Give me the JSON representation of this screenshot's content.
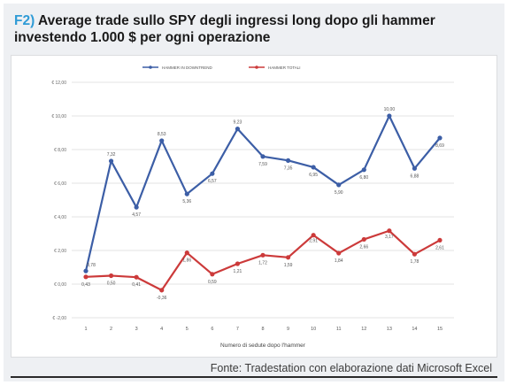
{
  "header": {
    "fig_label": "F2)",
    "title": "Average trade sullo SPY degli ingressi long dopo gli hammer investendo 1.000 $ per ogni operazione"
  },
  "footer": {
    "source": "Fonte: Tradestation con elaborazione dati Microsoft Excel"
  },
  "colors": {
    "accent": "#2f9bd6",
    "blue_series": "#3c5ea6",
    "red_series": "#cc3a3a",
    "grid": "#e3e3e3"
  },
  "chart_data": {
    "type": "line",
    "xlabel": "Numero di sedute dopo l'hammer",
    "ylabel": "",
    "x": [
      1,
      2,
      3,
      4,
      5,
      6,
      7,
      8,
      9,
      10,
      11,
      12,
      13,
      14,
      15
    ],
    "ylim": [
      -2,
      12
    ],
    "yticks": [
      -2,
      0,
      2,
      4,
      6,
      8,
      10,
      12
    ],
    "ytick_labels": [
      "€ -2,00",
      "€ 0,00",
      "€ 2,00",
      "€ 4,00",
      "€ 6,00",
      "€ 8,00",
      "€ 10,00",
      "€ 12,00"
    ],
    "grid": true,
    "legend_position": "top",
    "series": [
      {
        "name": "HAMMER IN DOWNTREND",
        "color": "#3c5ea6",
        "values": [
          0.78,
          7.32,
          4.57,
          8.53,
          5.36,
          6.57,
          9.23,
          7.59,
          7.35,
          6.95,
          5.9,
          6.8,
          10.0,
          6.88,
          8.69
        ],
        "labels": [
          "0,78",
          "7,32",
          "4,57",
          "8,53",
          "5,36",
          "6,57",
          "9,23",
          "7,59",
          "7,35",
          "6,95",
          "5,90",
          "6,80",
          "10,00",
          "6,88",
          "8,69"
        ]
      },
      {
        "name": "HAMMER TOTALI",
        "color": "#cc3a3a",
        "values": [
          0.43,
          0.5,
          0.41,
          -0.36,
          1.86,
          0.59,
          1.21,
          1.72,
          1.59,
          2.91,
          1.84,
          2.66,
          3.17,
          1.78,
          2.61
        ],
        "labels": [
          "0,43",
          "0,50",
          "0,41",
          "-0,36",
          "1,86",
          "0,59",
          "1,21",
          "1,72",
          "1,59",
          "2,91",
          "1,84",
          "2,66",
          "3,17",
          "1,78",
          "2,61"
        ]
      }
    ]
  }
}
